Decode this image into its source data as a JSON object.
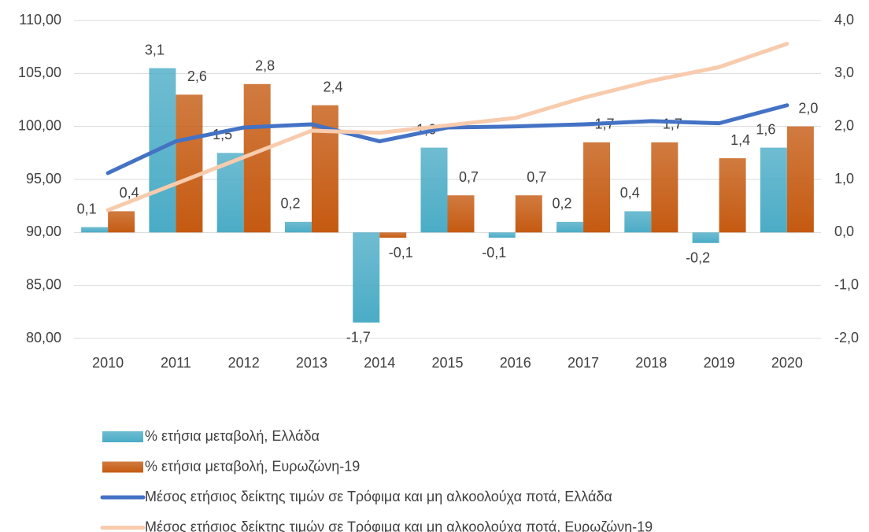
{
  "chart_data": {
    "type": "bar-line",
    "categories": [
      "2010",
      "2011",
      "2012",
      "2013",
      "2014",
      "2015",
      "2016",
      "2017",
      "2018",
      "2019",
      "2020"
    ],
    "series": [
      {
        "name": "% ετήσια μεταβολή, Ελλάδα",
        "type": "bar",
        "axis": "y2",
        "color": "#4bacc6",
        "values": [
          0.1,
          3.1,
          1.5,
          0.2,
          -1.7,
          1.6,
          -0.1,
          0.2,
          0.4,
          -0.2,
          1.6
        ],
        "value_labels": [
          "0,1",
          "3,1",
          "1,5",
          "0,2",
          "-1,7",
          "1,6",
          "-0,1",
          "0,2",
          "0,4",
          "-0,2",
          "1,6"
        ]
      },
      {
        "name": "% ετήσια μεταβολή, Ευρωζώνη-19",
        "type": "bar",
        "axis": "y2",
        "color": "#c55a11",
        "values": [
          0.4,
          2.6,
          2.8,
          2.4,
          -0.1,
          0.7,
          0.7,
          1.7,
          1.7,
          1.4,
          2.0
        ],
        "value_labels": [
          "0,4",
          "2,6",
          "2,8",
          "2,4",
          "-0,1",
          "0,7",
          "0,7",
          "1,7",
          "1,7",
          "1,4",
          "2,0"
        ]
      },
      {
        "name": "Μέσος ετήσιος δείκτης τιμών σε Τρόφιμα και μη αλκοολούχα ποτά, Ελλάδα",
        "type": "line",
        "color": "#4472c4",
        "values": [
          95.6,
          98.6,
          99.9,
          100.2,
          98.6,
          99.9,
          100.0,
          100.2,
          100.5,
          100.3,
          102.0
        ]
      },
      {
        "name": "Μέσος ετήσιος δείκτης τιμών σε Τρόφιμα και μη αλκοολούχα ποτά, Ευρωζώνη-19",
        "type": "line",
        "color": "#f8cbad",
        "values": [
          92.1,
          94.6,
          97.1,
          99.6,
          99.4,
          100.1,
          100.8,
          102.7,
          104.3,
          105.6,
          107.8
        ]
      }
    ],
    "ylim": [
      80,
      110
    ],
    "yticks": [
      {
        "value": 80,
        "label": "80,00"
      },
      {
        "value": 85,
        "label": "85,00"
      },
      {
        "value": 90,
        "label": "90,00"
      },
      {
        "value": 95,
        "label": "95,00"
      },
      {
        "value": 100,
        "label": "100,00"
      },
      {
        "value": 105,
        "label": "105,00"
      },
      {
        "value": 110,
        "label": "110,00"
      }
    ],
    "y2lim": [
      -2,
      4
    ],
    "y2ticks": [
      {
        "value": -2,
        "label": "-2,0"
      },
      {
        "value": -1,
        "label": "-1,0"
      },
      {
        "value": 0,
        "label": "0,0"
      },
      {
        "value": 1,
        "label": "1,0"
      },
      {
        "value": 2,
        "label": "2,0"
      },
      {
        "value": 3,
        "label": "3,0"
      },
      {
        "value": 4,
        "label": "4,0"
      }
    ],
    "grid": true,
    "legend": "bottom-left"
  }
}
